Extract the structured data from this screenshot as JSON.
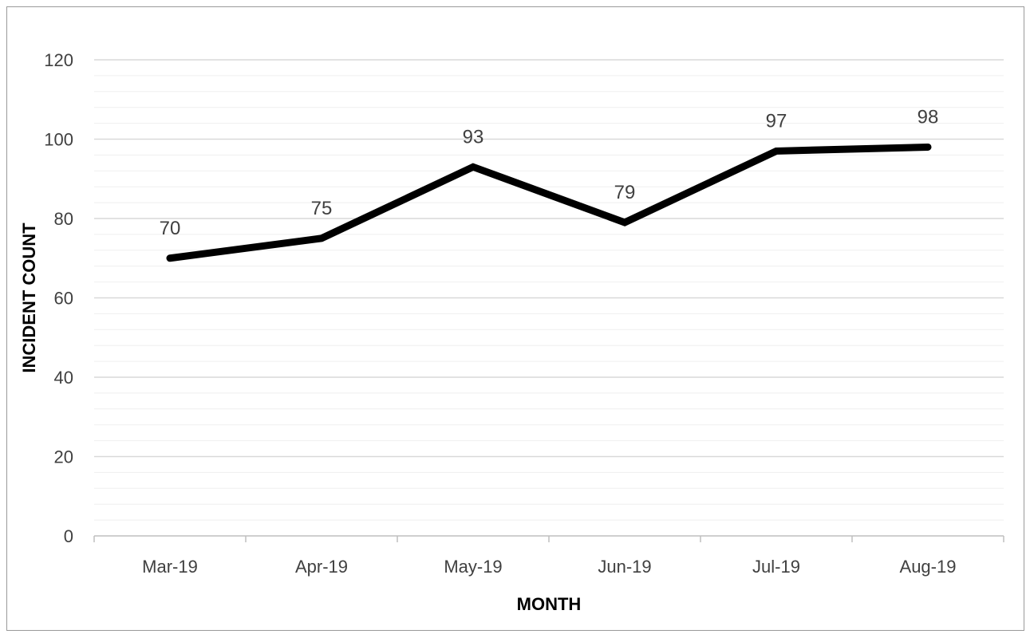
{
  "chart_data": {
    "type": "line",
    "title": "",
    "xlabel": "MONTH",
    "ylabel": "INCIDENT COUNT",
    "categories": [
      "Mar-19",
      "Apr-19",
      "May-19",
      "Jun-19",
      "Jul-19",
      "Aug-19"
    ],
    "series": [
      {
        "values": [
          70,
          75,
          93,
          79,
          97,
          98
        ],
        "color": "#000000"
      }
    ],
    "data_labels": [
      "70",
      "75",
      "93",
      "79",
      "97",
      "98"
    ],
    "ylim": [
      0,
      120
    ],
    "y_ticks": [
      "0",
      "20",
      "40",
      "60",
      "80",
      "100",
      "120"
    ],
    "y_tick_values": [
      0,
      20,
      40,
      60,
      80,
      100,
      120
    ],
    "y_minor_gridline_step": 4,
    "grid": true,
    "gridline_color": "#d9d9d9",
    "legend": "none"
  }
}
